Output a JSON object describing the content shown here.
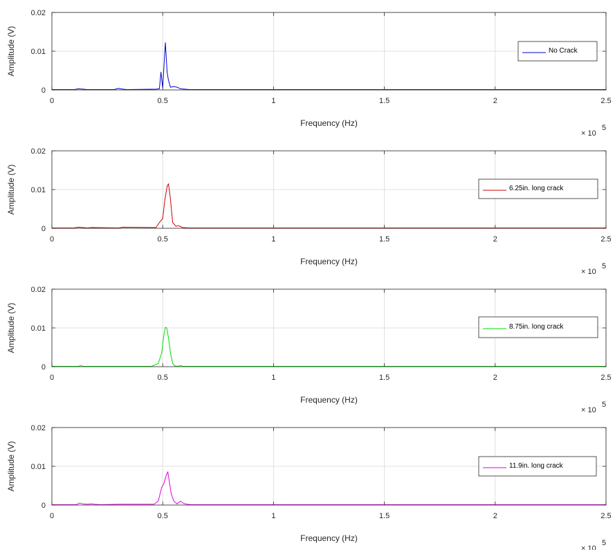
{
  "chart_data": [
    {
      "type": "line",
      "xlabel": "Frequency (Hz)",
      "ylabel": "Amplitude  (V)",
      "x_exponent_label": "10",
      "x_exponent_power": "5",
      "xlim": [
        0,
        250000
      ],
      "ylim": [
        0,
        0.02
      ],
      "xticks": [
        0,
        50000,
        100000,
        150000,
        200000,
        250000
      ],
      "xtick_labels": [
        "0",
        "0.5",
        "1",
        "1.5",
        "2",
        "2.5"
      ],
      "yticks": [
        0,
        0.01,
        0.02
      ],
      "ytick_labels": [
        "0",
        "0.01",
        "0.02"
      ],
      "grid": true,
      "legend_position": "right",
      "series": [
        {
          "name": "No Crack",
          "color": "#0000cc",
          "x": [
            0,
            10000,
            12000,
            14000,
            16000,
            28000,
            30000,
            32000,
            34000,
            47000,
            48500,
            49200,
            50000,
            50700,
            51200,
            52000,
            52600,
            53500,
            55000,
            56500,
            58000,
            60000,
            62000,
            70000,
            100000,
            150000,
            200000,
            250000
          ],
          "y": [
            0.0001,
            0.0001,
            0.0003,
            0.0002,
            0.0001,
            0.0001,
            0.0004,
            0.0002,
            0.0001,
            0.0002,
            0.0003,
            0.0046,
            0.0005,
            0.0075,
            0.0122,
            0.0045,
            0.0025,
            0.0007,
            0.0009,
            0.0007,
            0.0003,
            0.0002,
            0.0001,
            0.0001,
            0.0001,
            0.0001,
            0.0001,
            0.0001
          ]
        }
      ]
    },
    {
      "type": "line",
      "xlabel": "Frequency (Hz)",
      "ylabel": "Amplitude  (V)",
      "x_exponent_label": "10",
      "x_exponent_power": "5",
      "xlim": [
        0,
        250000
      ],
      "ylim": [
        0,
        0.02
      ],
      "xticks": [
        0,
        50000,
        100000,
        150000,
        200000,
        250000
      ],
      "xtick_labels": [
        "0",
        "0.5",
        "1",
        "1.5",
        "2",
        "2.5"
      ],
      "yticks": [
        0,
        0.01,
        0.02
      ],
      "ytick_labels": [
        "0",
        "0.01",
        "0.02"
      ],
      "grid": true,
      "legend_position": "right",
      "series": [
        {
          "name": "6.25in. long crack",
          "color": "#cc0000",
          "x": [
            0,
            10000,
            12000,
            14000,
            16000,
            18000,
            30000,
            32000,
            47000,
            48500,
            50000,
            51000,
            52000,
            52600,
            53400,
            54500,
            56000,
            57000,
            59000,
            62000,
            100000,
            150000,
            200000,
            250000
          ],
          "y": [
            0.0001,
            0.0001,
            0.0003,
            0.0002,
            0.0001,
            0.0002,
            0.0001,
            0.0003,
            0.0002,
            0.0015,
            0.0025,
            0.0075,
            0.0108,
            0.0115,
            0.008,
            0.0015,
            0.0005,
            0.0007,
            0.0002,
            0.0001,
            0.0001,
            0.0001,
            0.0001,
            0.0001
          ]
        }
      ]
    },
    {
      "type": "line",
      "xlabel": "Frequency (Hz)",
      "ylabel": "Amplitude  (V)",
      "x_exponent_label": "10",
      "x_exponent_power": "5",
      "xlim": [
        0,
        250000
      ],
      "ylim": [
        0,
        0.02
      ],
      "xticks": [
        0,
        50000,
        100000,
        150000,
        200000,
        250000
      ],
      "xtick_labels": [
        "0",
        "0.5",
        "1",
        "1.5",
        "2",
        "2.5"
      ],
      "yticks": [
        0,
        0.01,
        0.02
      ],
      "ytick_labels": [
        "0",
        "0.01",
        "0.02"
      ],
      "grid": true,
      "legend_position": "right",
      "series": [
        {
          "name": "8.75in. long crack",
          "color": "#00dd00",
          "x": [
            0,
            12000,
            13000,
            14000,
            45000,
            48000,
            49500,
            50500,
            51200,
            51800,
            52600,
            53500,
            54500,
            55500,
            57000,
            58000,
            59000,
            62000,
            100000,
            150000,
            200000,
            250000
          ],
          "y": [
            0.0001,
            0.0001,
            0.0003,
            0.0001,
            0.0001,
            0.0008,
            0.0035,
            0.008,
            0.0102,
            0.01,
            0.0075,
            0.0035,
            0.0008,
            0.0002,
            0.0001,
            0.0003,
            0.0001,
            0.0001,
            0.0001,
            0.0001,
            0.0001,
            0.0001
          ]
        }
      ]
    },
    {
      "type": "line",
      "xlabel": "Frequency (Hz)",
      "ylabel": "Amplitude  (V)",
      "x_exponent_label": "10",
      "x_exponent_power": "5",
      "xlim": [
        0,
        250000
      ],
      "ylim": [
        0,
        0.02
      ],
      "xticks": [
        0,
        50000,
        100000,
        150000,
        200000,
        250000
      ],
      "xtick_labels": [
        "0",
        "0.5",
        "1",
        "1.5",
        "2",
        "2.5"
      ],
      "yticks": [
        0,
        0.01,
        0.02
      ],
      "ytick_labels": [
        "0",
        "0.01",
        "0.02"
      ],
      "grid": true,
      "legend_position": "right",
      "series": [
        {
          "name": "11.9in. long crack",
          "color": "#dd00dd",
          "x": [
            0,
            11000,
            12500,
            14000,
            16000,
            18000,
            19000,
            22000,
            30000,
            46000,
            48000,
            49500,
            50500,
            51500,
            52300,
            53000,
            53800,
            55000,
            56500,
            58000,
            59500,
            61000,
            63000,
            100000,
            150000,
            200000,
            250000
          ],
          "y": [
            0.0001,
            0.0001,
            0.0005,
            0.0003,
            0.0002,
            0.0003,
            0.0002,
            0.0001,
            0.0002,
            0.0002,
            0.001,
            0.0045,
            0.0055,
            0.0075,
            0.0086,
            0.006,
            0.003,
            0.001,
            0.0003,
            0.001,
            0.0004,
            0.0002,
            0.0001,
            0.0001,
            0.0001,
            0.0001,
            0.0001
          ]
        }
      ]
    }
  ]
}
